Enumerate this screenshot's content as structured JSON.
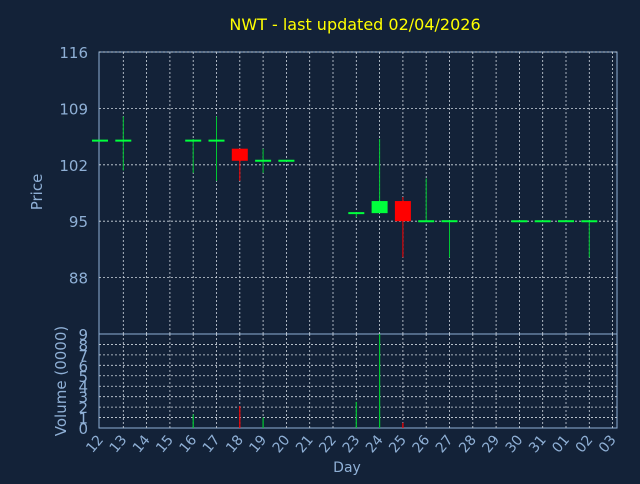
{
  "title": "NWT - last updated 02/04/2026",
  "colors": {
    "background": "#132238",
    "title": "#ffff00",
    "axis_text": "#8fb0d6",
    "grid": "#d0d8e0",
    "up": "#00ff3c",
    "down": "#ff0000",
    "wick": "#00c832"
  },
  "chart_data": [
    {
      "type": "candlestick",
      "ylabel": "Price",
      "ylim": [
        81,
        116
      ],
      "yticks": [
        "116",
        "109",
        "102",
        "95",
        "88"
      ],
      "grid": true,
      "x_tick_labels": [
        "12",
        "13",
        "14",
        "15",
        "16",
        "17",
        "18",
        "19",
        "20",
        "21",
        "22",
        "23",
        "24",
        "25",
        "26",
        "27",
        "28",
        "29",
        "30",
        "31",
        "01",
        "02",
        "03"
      ],
      "candles": [
        {
          "day": "12",
          "open": 105,
          "close": 105,
          "high": 105,
          "low": 105
        },
        {
          "day": "13",
          "open": 105,
          "close": 105,
          "high": 108,
          "low": 101.3
        },
        {
          "day": "16",
          "open": 105,
          "close": 105,
          "high": 105.2,
          "low": 101
        },
        {
          "day": "17",
          "open": 105,
          "close": 105,
          "high": 108,
          "low": 100
        },
        {
          "day": "18",
          "open": 104,
          "close": 102.5,
          "high": 104,
          "low": 100
        },
        {
          "day": "19",
          "open": 102.5,
          "close": 102.5,
          "high": 104,
          "low": 101
        },
        {
          "day": "20",
          "open": 102.5,
          "close": 102.5,
          "high": 102.5,
          "low": 102.5
        },
        {
          "day": "23",
          "open": 96,
          "close": 96,
          "high": 96,
          "low": 95.5
        },
        {
          "day": "24",
          "open": 96,
          "close": 97.5,
          "high": 105.2,
          "low": 96
        },
        {
          "day": "25",
          "open": 97.5,
          "close": 95,
          "high": 98,
          "low": 90.5
        },
        {
          "day": "26",
          "open": 95,
          "close": 95,
          "high": 100.3,
          "low": 95
        },
        {
          "day": "27",
          "open": 95,
          "close": 95,
          "high": 95,
          "low": 90.5
        },
        {
          "day": "30",
          "open": 95,
          "close": 95,
          "high": 95,
          "low": 95
        },
        {
          "day": "31",
          "open": 95,
          "close": 95,
          "high": 95,
          "low": 95
        },
        {
          "day": "01",
          "open": 95,
          "close": 95,
          "high": 95,
          "low": 95
        },
        {
          "day": "02",
          "open": 95,
          "close": 95,
          "high": 95,
          "low": 90.5
        }
      ]
    },
    {
      "type": "bar",
      "ylabel": "Volume (0000)",
      "xlabel": "Day",
      "ylim": [
        0,
        9
      ],
      "yticks": [
        "9",
        "8",
        "7",
        "6",
        "5",
        "4",
        "3",
        "2",
        "1",
        "0"
      ],
      "grid": true,
      "categories": [
        "16",
        "18",
        "19",
        "23",
        "24",
        "25"
      ],
      "values": [
        1.3,
        2.1,
        1.0,
        2.5,
        9.0,
        0.5
      ],
      "directions": [
        "up",
        "down",
        "up",
        "up",
        "up",
        "down"
      ]
    }
  ]
}
